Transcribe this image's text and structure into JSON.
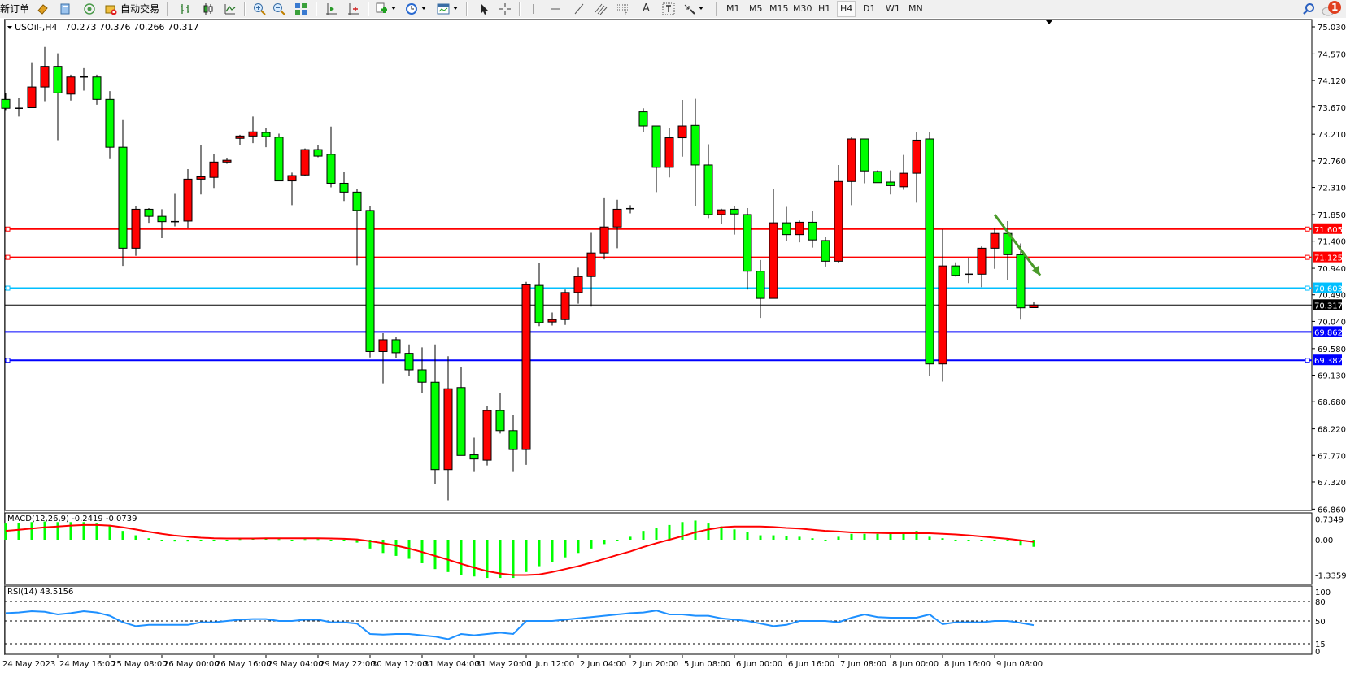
{
  "toolbar": {
    "new_order_label": "新订单",
    "autotrade_label": "自动交易",
    "icons": [
      "metaeditor-icon",
      "market-watch-icon",
      "signals-icon",
      "autotrading-icon",
      "bar-chart-icon",
      "candlestick-icon",
      "line-chart-icon",
      "zoom-in-icon",
      "zoom-out-icon",
      "tile-windows-icon",
      "chart-shift-icon",
      "autoscroll-icon",
      "indicators-icon",
      "periods-icon",
      "templates-icon",
      "cursor-icon",
      "crosshair-icon",
      "vertical-line-icon",
      "horizontal-line-icon",
      "trendline-icon",
      "equidistant-channel-icon",
      "fibonacci-icon",
      "text-icon",
      "text-label-icon",
      "arrows-icon"
    ],
    "timeframes": [
      "M1",
      "M5",
      "M15",
      "M30",
      "H1",
      "H4",
      "D1",
      "W1",
      "MN"
    ],
    "selected_timeframe": "H4",
    "notification_count": "1"
  },
  "chart_data": {
    "type": "candlestick",
    "symbol_label": "USOil-,H4",
    "ohlc_label": "70.273 70.376 70.266 70.317",
    "bull_color": "#ff0000",
    "bear_color": "#00ff00",
    "ylim": [
      66.86,
      75.03
    ],
    "price_ticks": [
      "75.030",
      "74.570",
      "74.120",
      "73.670",
      "73.210",
      "72.760",
      "72.310",
      "71.850",
      "71.400",
      "70.940",
      "70.490",
      "70.040",
      "69.580",
      "69.130",
      "68.680",
      "68.220",
      "67.770",
      "67.320",
      "66.860"
    ],
    "time_labels": [
      "24 May 2023",
      "24 May 16:00",
      "25 May 08:00",
      "26 May 00:00",
      "26 May 16:00",
      "29 May 04:00",
      "29 May 22:00",
      "30 May 12:00",
      "31 May 04:00",
      "31 May 20:00",
      "1 Jun 12:00",
      "2 Jun 04:00",
      "2 Jun 20:00",
      "5 Jun 08:00",
      "6 Jun 00:00",
      "6 Jun 16:00",
      "7 Jun 08:00",
      "8 Jun 00:00",
      "8 Jun 16:00",
      "9 Jun 08:00"
    ],
    "candles_ohlc": [
      [
        73.8,
        73.91,
        73.62,
        73.65
      ],
      [
        73.65,
        73.83,
        73.51,
        73.65
      ],
      [
        73.66,
        74.43,
        73.66,
        74.01
      ],
      [
        74.01,
        74.69,
        73.77,
        74.36
      ],
      [
        74.36,
        74.58,
        73.11,
        73.91
      ],
      [
        73.89,
        74.22,
        73.78,
        74.18
      ],
      [
        74.18,
        74.33,
        73.95,
        74.18
      ],
      [
        74.18,
        74.22,
        73.71,
        73.8
      ],
      [
        73.8,
        73.94,
        72.79,
        72.99
      ],
      [
        72.99,
        73.45,
        70.98,
        71.28
      ],
      [
        71.28,
        71.99,
        71.15,
        71.94
      ],
      [
        71.94,
        71.96,
        71.71,
        71.82
      ],
      [
        71.82,
        71.94,
        71.45,
        71.73
      ],
      [
        71.73,
        72.2,
        71.65,
        71.73
      ],
      [
        71.74,
        72.62,
        71.63,
        72.45
      ],
      [
        72.45,
        73.02,
        72.19,
        72.49
      ],
      [
        72.48,
        72.88,
        72.3,
        72.74
      ],
      [
        72.74,
        72.8,
        72.71,
        72.77
      ],
      [
        73.14,
        73.2,
        73.02,
        73.18
      ],
      [
        73.18,
        73.51,
        73.06,
        73.25
      ],
      [
        73.24,
        73.32,
        72.99,
        73.17
      ],
      [
        73.16,
        73.22,
        72.42,
        72.42
      ],
      [
        72.42,
        72.56,
        72.01,
        72.51
      ],
      [
        72.52,
        72.97,
        72.5,
        72.95
      ],
      [
        72.95,
        73.03,
        72.82,
        72.84
      ],
      [
        72.87,
        73.34,
        72.31,
        72.38
      ],
      [
        72.38,
        72.57,
        72.08,
        72.23
      ],
      [
        72.23,
        72.28,
        70.99,
        71.92
      ],
      [
        71.92,
        71.99,
        69.43,
        69.53
      ],
      [
        69.53,
        69.84,
        68.99,
        69.73
      ],
      [
        69.73,
        69.77,
        69.42,
        69.51
      ],
      [
        69.5,
        69.65,
        69.12,
        69.22
      ],
      [
        69.22,
        69.6,
        68.82,
        69.01
      ],
      [
        69.01,
        69.65,
        67.28,
        67.53
      ],
      [
        67.53,
        69.45,
        67.01,
        68.9
      ],
      [
        68.92,
        69.27,
        67.77,
        67.77
      ],
      [
        67.78,
        68.07,
        67.49,
        67.71
      ],
      [
        67.69,
        68.6,
        67.6,
        68.53
      ],
      [
        68.53,
        68.82,
        68.14,
        68.19
      ],
      [
        68.19,
        68.45,
        67.49,
        67.87
      ],
      [
        67.87,
        70.71,
        67.61,
        70.66
      ],
      [
        70.65,
        71.03,
        69.96,
        70.02
      ],
      [
        70.03,
        70.19,
        69.97,
        70.07
      ],
      [
        70.07,
        70.58,
        69.98,
        70.53
      ],
      [
        70.53,
        70.95,
        70.34,
        70.8
      ],
      [
        70.8,
        71.54,
        70.29,
        71.2
      ],
      [
        71.2,
        72.14,
        71.09,
        71.64
      ],
      [
        71.64,
        72.1,
        71.28,
        71.94
      ],
      [
        71.95,
        72.01,
        71.87,
        71.95
      ],
      [
        73.59,
        73.65,
        73.25,
        73.35
      ],
      [
        73.35,
        73.35,
        72.23,
        72.65
      ],
      [
        72.65,
        73.31,
        72.48,
        73.15
      ],
      [
        73.15,
        73.79,
        72.83,
        73.35
      ],
      [
        73.36,
        73.81,
        71.99,
        72.69
      ],
      [
        72.69,
        73.04,
        71.79,
        71.85
      ],
      [
        71.85,
        71.95,
        71.69,
        71.93
      ],
      [
        71.94,
        72.0,
        71.51,
        71.86
      ],
      [
        71.85,
        71.96,
        70.58,
        70.89
      ],
      [
        70.89,
        71.08,
        70.1,
        70.43
      ],
      [
        70.43,
        72.29,
        70.43,
        71.71
      ],
      [
        71.71,
        71.98,
        71.4,
        71.51
      ],
      [
        71.51,
        71.75,
        71.38,
        71.72
      ],
      [
        71.72,
        71.91,
        71.29,
        71.42
      ],
      [
        71.41,
        71.47,
        70.97,
        71.06
      ],
      [
        71.06,
        72.69,
        71.03,
        72.41
      ],
      [
        72.41,
        73.16,
        72.01,
        73.13
      ],
      [
        73.13,
        73.13,
        72.38,
        72.59
      ],
      [
        72.58,
        72.6,
        72.39,
        72.39
      ],
      [
        72.4,
        72.6,
        72.19,
        72.34
      ],
      [
        72.32,
        72.86,
        72.27,
        72.55
      ],
      [
        72.55,
        73.25,
        72.05,
        73.11
      ],
      [
        73.13,
        73.24,
        69.11,
        69.32
      ],
      [
        69.32,
        71.6,
        69.02,
        70.98
      ],
      [
        70.98,
        71.04,
        70.8,
        70.82
      ],
      [
        70.82,
        71.11,
        70.69,
        70.84
      ],
      [
        70.84,
        71.31,
        70.62,
        71.28
      ],
      [
        71.28,
        71.63,
        70.93,
        71.53
      ],
      [
        71.53,
        71.74,
        70.74,
        71.17
      ],
      [
        71.17,
        71.36,
        70.07,
        70.27
      ],
      [
        70.273,
        70.376,
        70.266,
        70.317
      ]
    ],
    "horizontal_lines": [
      {
        "price": "71.605",
        "color": "#ff0000",
        "handles": true
      },
      {
        "price": "71.125",
        "color": "#ff0000",
        "handles": true
      },
      {
        "price": "70.603",
        "color": "#00bfff",
        "handles": true
      },
      {
        "price": "69.862",
        "color": "#0000ff",
        "handles": false
      },
      {
        "price": "69.382",
        "color": "#0000ff",
        "handles": true
      }
    ],
    "current_price": "70.317",
    "annotation_arrow": {
      "color": "#4a9a2a",
      "from_candle": 76,
      "from_price": 71.85,
      "to_candle": 79.5,
      "to_price": 70.82
    },
    "macd": {
      "label": "MACD(12,26,9) -0.2419 -0.0739",
      "axis_ticks": [
        "0.7349",
        "0.00",
        "-1.3359"
      ],
      "ylim": [
        -1.3359,
        0.7349
      ],
      "main_color": "#00ff00",
      "signal_color": "#ff0000",
      "main": [
        0.55,
        0.58,
        0.6,
        0.62,
        0.6,
        0.6,
        0.6,
        0.55,
        0.5,
        0.3,
        0.15,
        0.05,
        -0.03,
        -0.06,
        -0.06,
        -0.05,
        -0.03,
        0.0,
        0.02,
        0.04,
        0.04,
        0.02,
        0.0,
        0.02,
        0.02,
        -0.02,
        -0.05,
        -0.1,
        -0.3,
        -0.45,
        -0.55,
        -0.65,
        -0.8,
        -1.0,
        -1.1,
        -1.2,
        -1.25,
        -1.3,
        -1.3,
        -1.3,
        -1.1,
        -0.9,
        -0.75,
        -0.6,
        -0.45,
        -0.3,
        -0.15,
        -0.02,
        0.1,
        0.3,
        0.4,
        0.5,
        0.6,
        0.65,
        0.55,
        0.45,
        0.35,
        0.25,
        0.15,
        0.15,
        0.12,
        0.1,
        0.05,
        0.0,
        0.1,
        0.2,
        0.2,
        0.2,
        0.2,
        0.2,
        0.3,
        0.1,
        0.05,
        -0.02,
        -0.05,
        -0.05,
        0.0,
        -0.05,
        -0.2,
        -0.2419
      ],
      "signal": [
        0.3,
        0.34,
        0.38,
        0.42,
        0.45,
        0.48,
        0.5,
        0.5,
        0.48,
        0.42,
        0.35,
        0.27,
        0.2,
        0.14,
        0.1,
        0.07,
        0.05,
        0.04,
        0.04,
        0.04,
        0.05,
        0.05,
        0.05,
        0.05,
        0.05,
        0.04,
        0.03,
        0.01,
        -0.05,
        -0.12,
        -0.2,
        -0.3,
        -0.42,
        -0.55,
        -0.68,
        -0.82,
        -0.95,
        -1.07,
        -1.15,
        -1.2,
        -1.2,
        -1.18,
        -1.1,
        -1.0,
        -0.9,
        -0.78,
        -0.65,
        -0.52,
        -0.4,
        -0.25,
        -0.12,
        0.0,
        0.12,
        0.25,
        0.35,
        0.42,
        0.45,
        0.45,
        0.45,
        0.43,
        0.4,
        0.38,
        0.34,
        0.3,
        0.28,
        0.25,
        0.24,
        0.23,
        0.22,
        0.22,
        0.22,
        0.22,
        0.2,
        0.18,
        0.15,
        0.11,
        0.07,
        0.03,
        -0.02,
        -0.0739
      ]
    },
    "rsi": {
      "label": "RSI(14) 43.5156",
      "axis_ticks": [
        "100",
        "80",
        "50",
        "15",
        "0"
      ],
      "levels": [
        80,
        50,
        15
      ],
      "color": "#1e90ff",
      "values": [
        62,
        63,
        65,
        64,
        60,
        62,
        65,
        63,
        58,
        48,
        42,
        44,
        44,
        44,
        44,
        48,
        48,
        50,
        52,
        53,
        53,
        50,
        50,
        52,
        52,
        48,
        48,
        46,
        30,
        29,
        30,
        30,
        28,
        26,
        22,
        30,
        28,
        30,
        32,
        30,
        50,
        50,
        50,
        52,
        54,
        56,
        58,
        60,
        62,
        63,
        66,
        60,
        60,
        58,
        58,
        54,
        52,
        50,
        46,
        42,
        44,
        50,
        50,
        50,
        48,
        55,
        60,
        56,
        55,
        55,
        55,
        60,
        45,
        48,
        48,
        48,
        50,
        50,
        47,
        43.5156
      ]
    }
  }
}
